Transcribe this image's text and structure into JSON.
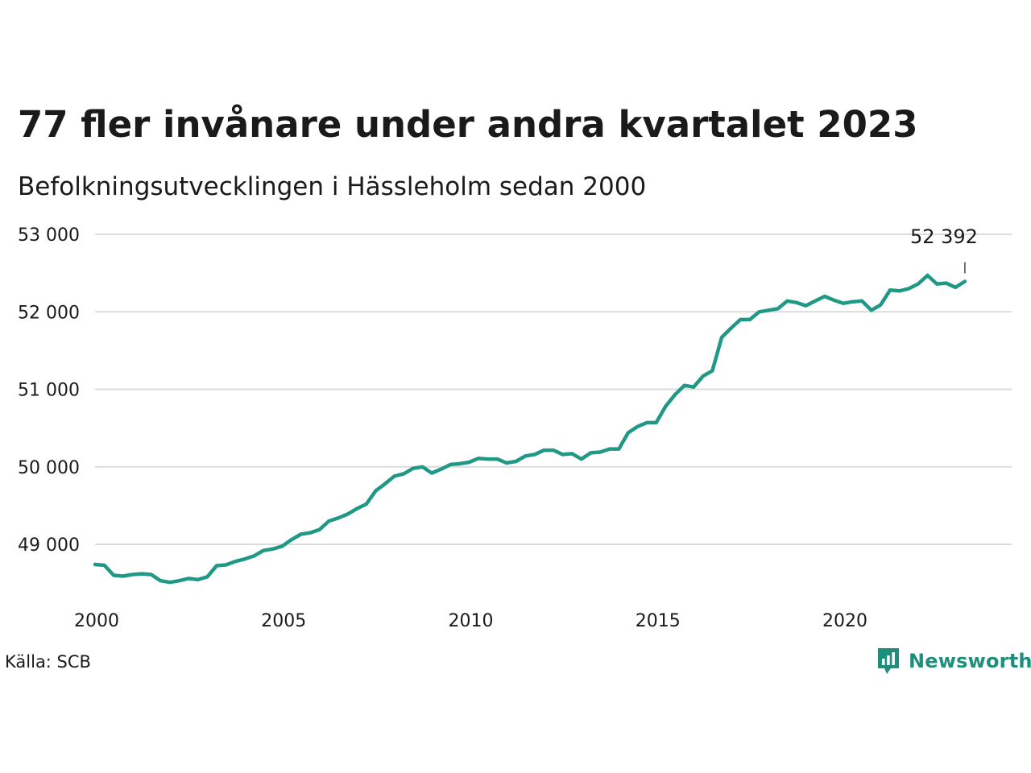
{
  "header": {
    "title": "77 fler invånare under andra kvartalet 2023",
    "subtitle": "Befolkningsutvecklingen i Hässleholm sedan 2000"
  },
  "footer": {
    "source": "Källa: SCB",
    "brand": "Newsworthy",
    "brand_icon": "bar-chart-speech-bubble-icon",
    "brand_color": "#1f8e7d"
  },
  "chart_data": {
    "type": "line",
    "color": "#1f9985",
    "grid": true,
    "x_tick_values": [
      2000,
      2005,
      2010,
      2015,
      2020
    ],
    "x_tick_labels": [
      "2000",
      "2005",
      "2010",
      "2015",
      "2020"
    ],
    "y_tick_values": [
      49000,
      50000,
      51000,
      52000,
      53000
    ],
    "y_tick_labels": [
      "49 000",
      "50 000",
      "51 000",
      "52 000",
      "53 000"
    ],
    "xlim": [
      2000,
      2024.5
    ],
    "ylim": [
      48400,
      53000
    ],
    "end_label": "52 392",
    "series": [
      {
        "x": [
          2000.0,
          2000.25,
          2000.5,
          2000.75,
          2001.0,
          2001.25,
          2001.5,
          2001.75,
          2002.0,
          2002.25,
          2002.5,
          2002.75,
          2003.0,
          2003.25,
          2003.5,
          2003.75,
          2004.0,
          2004.25,
          2004.5,
          2004.75,
          2005.0,
          2005.25,
          2005.5,
          2005.75,
          2006.0,
          2006.25,
          2006.5,
          2006.75,
          2007.0,
          2007.25,
          2007.5,
          2007.75,
          2008.0,
          2008.25,
          2008.5,
          2008.75,
          2009.0,
          2009.25,
          2009.5,
          2009.75,
          2010.0,
          2010.25,
          2010.5,
          2010.75,
          2011.0,
          2011.25,
          2011.5,
          2011.75,
          2012.0,
          2012.25,
          2012.5,
          2012.75,
          2013.0,
          2013.25,
          2013.5,
          2013.75,
          2014.0,
          2014.25,
          2014.5,
          2014.75,
          2015.0,
          2015.25,
          2015.5,
          2015.75,
          2016.0,
          2016.25,
          2016.5,
          2016.75,
          2017.0,
          2017.25,
          2017.5,
          2017.75,
          2018.0,
          2018.25,
          2018.5,
          2018.75,
          2019.0,
          2019.25,
          2019.5,
          2019.75,
          2020.0,
          2020.25,
          2020.5,
          2020.75,
          2021.0,
          2021.25,
          2021.5,
          2021.75,
          2022.0,
          2022.25,
          2022.5,
          2022.75,
          2023.0,
          2023.25
        ],
        "y": [
          48740,
          48730,
          48600,
          48590,
          48610,
          48620,
          48610,
          48530,
          48510,
          48530,
          48560,
          48545,
          48580,
          48725,
          48735,
          48780,
          48810,
          48850,
          48920,
          48940,
          48975,
          49060,
          49130,
          49150,
          49190,
          49300,
          49340,
          49390,
          49460,
          49520,
          49690,
          49780,
          49880,
          49910,
          49980,
          50000,
          49920,
          49970,
          50030,
          50040,
          50060,
          50110,
          50100,
          50100,
          50050,
          50070,
          50140,
          50160,
          50215,
          50215,
          50160,
          50170,
          50100,
          50180,
          50190,
          50230,
          50230,
          50440,
          50520,
          50570,
          50570,
          50780,
          50930,
          51050,
          51030,
          51170,
          51240,
          51670,
          51790,
          51900,
          51900,
          52000,
          52020,
          52040,
          52140,
          52120,
          52080,
          52140,
          52200,
          52150,
          52110,
          52130,
          52140,
          52020,
          52090,
          52280,
          52270,
          52300,
          52360,
          52470,
          52360,
          52370,
          52315,
          52392
        ]
      }
    ]
  }
}
